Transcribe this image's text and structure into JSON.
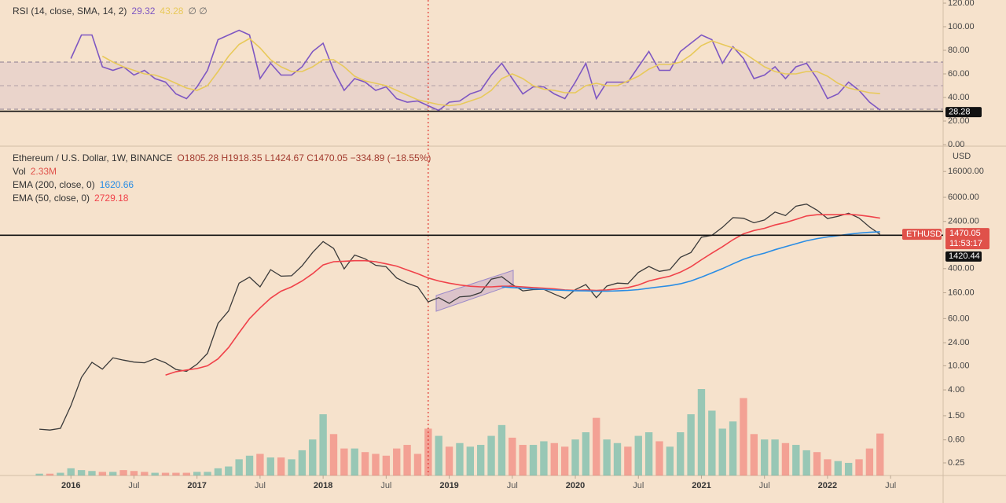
{
  "chart_data": [
    {
      "type": "line",
      "title": "RSI (14, close, SMA, 14, 2)",
      "legend_extra": "∅ ∅",
      "x": [
        "2015-10",
        "2015-11",
        "2015-12",
        "2016-01",
        "2016-02",
        "2016-03",
        "2016-04",
        "2016-05",
        "2016-06",
        "2016-07",
        "2016-08",
        "2016-09",
        "2016-10",
        "2016-11",
        "2016-12",
        "2017-01",
        "2017-02",
        "2017-03",
        "2017-04",
        "2017-05",
        "2017-06",
        "2017-07",
        "2017-08",
        "2017-09",
        "2017-10",
        "2017-11",
        "2017-12",
        "2018-01",
        "2018-02",
        "2018-03",
        "2018-04",
        "2018-05",
        "2018-06",
        "2018-07",
        "2018-08",
        "2018-09",
        "2018-10",
        "2018-11",
        "2018-12",
        "2019-01",
        "2019-02",
        "2019-03",
        "2019-04",
        "2019-05",
        "2019-06",
        "2019-07",
        "2019-08",
        "2019-09",
        "2019-10",
        "2019-11",
        "2019-12",
        "2020-01",
        "2020-02",
        "2020-03",
        "2020-04",
        "2020-05",
        "2020-06",
        "2020-07",
        "2020-08",
        "2020-09",
        "2020-10",
        "2020-11",
        "2020-12",
        "2021-01",
        "2021-02",
        "2021-03",
        "2021-04",
        "2021-05",
        "2021-06",
        "2021-07",
        "2021-08",
        "2021-09",
        "2021-10",
        "2021-11",
        "2021-12",
        "2022-01",
        "2022-02",
        "2022-03",
        "2022-04",
        "2022-05",
        "2022-06"
      ],
      "xlim": [
        "2015-07",
        "2022-12"
      ],
      "series": [
        {
          "name": "RSI",
          "color": "#7e57c2",
          "values": [
            null,
            null,
            null,
            73,
            93,
            93,
            66,
            63,
            66,
            59,
            63,
            56,
            53,
            43,
            39,
            49,
            63,
            89,
            93,
            97,
            93,
            56,
            69,
            59,
            59,
            66,
            79,
            86,
            63,
            46,
            56,
            53,
            46,
            49,
            39,
            36,
            37,
            33,
            29,
            36,
            37,
            43,
            46,
            59,
            69,
            56,
            43,
            49,
            49,
            43,
            39,
            53,
            69,
            39,
            53,
            53,
            53,
            66,
            79,
            63,
            63,
            79,
            86,
            93,
            89,
            69,
            83,
            73,
            56,
            59,
            66,
            56,
            66,
            69,
            56,
            39,
            43,
            53,
            46,
            36,
            29.32
          ]
        },
        {
          "name": "SMA",
          "color": "#e8c95a",
          "values": [
            null,
            null,
            null,
            null,
            null,
            null,
            75,
            70,
            66,
            63,
            60,
            59,
            56,
            52,
            48,
            46,
            50,
            62,
            75,
            85,
            90,
            82,
            72,
            66,
            62,
            62,
            66,
            72,
            72,
            66,
            58,
            54,
            52,
            50,
            46,
            42,
            38,
            36,
            34,
            33,
            34,
            37,
            40,
            46,
            56,
            60,
            56,
            50,
            47,
            46,
            44,
            44,
            50,
            52,
            50,
            50,
            54,
            58,
            64,
            68,
            68,
            70,
            76,
            84,
            88,
            85,
            82,
            78,
            72,
            66,
            62,
            60,
            60,
            62,
            62,
            58,
            52,
            48,
            46,
            44,
            43.28
          ]
        }
      ],
      "ylim": [
        0,
        120
      ],
      "yticks": [
        {
          "value": 0,
          "label": "0.00"
        },
        {
          "value": 20,
          "label": "20.00"
        },
        {
          "value": 40,
          "label": "40.00"
        },
        {
          "value": 60,
          "label": "60.00"
        },
        {
          "value": 80,
          "label": "80.00"
        },
        {
          "value": 100,
          "label": "100.00"
        },
        {
          "value": 120,
          "label": "120.00"
        }
      ],
      "band": [
        30,
        70
      ],
      "midline": 50,
      "band_color": "#7e57c2",
      "hline": {
        "value": 28.28,
        "label": "28.28"
      },
      "vline": "2018-11"
    },
    {
      "type": "line",
      "title": "Ethereum / U.S. Dollar, 1W, BINANCE",
      "ohlc": "O1805.28 H1918.35 L1424.67 C1470.05 −334.89 (−18.55%)",
      "axis_label": "USD",
      "countdown": "11:53:17",
      "log_scale": true,
      "x": [
        "2015-10",
        "2015-11",
        "2015-12",
        "2016-01",
        "2016-02",
        "2016-03",
        "2016-04",
        "2016-05",
        "2016-06",
        "2016-07",
        "2016-08",
        "2016-09",
        "2016-10",
        "2016-11",
        "2016-12",
        "2017-01",
        "2017-02",
        "2017-03",
        "2017-04",
        "2017-05",
        "2017-06",
        "2017-07",
        "2017-08",
        "2017-09",
        "2017-10",
        "2017-11",
        "2017-12",
        "2018-01",
        "2018-02",
        "2018-03",
        "2018-04",
        "2018-05",
        "2018-06",
        "2018-07",
        "2018-08",
        "2018-09",
        "2018-10",
        "2018-11",
        "2018-12",
        "2019-01",
        "2019-02",
        "2019-03",
        "2019-04",
        "2019-05",
        "2019-06",
        "2019-07",
        "2019-08",
        "2019-09",
        "2019-10",
        "2019-11",
        "2019-12",
        "2020-01",
        "2020-02",
        "2020-03",
        "2020-04",
        "2020-05",
        "2020-06",
        "2020-07",
        "2020-08",
        "2020-09",
        "2020-10",
        "2020-11",
        "2020-12",
        "2021-01",
        "2021-02",
        "2021-03",
        "2021-04",
        "2021-05",
        "2021-06",
        "2021-07",
        "2021-08",
        "2021-09",
        "2021-10",
        "2021-11",
        "2021-12",
        "2022-01",
        "2022-02",
        "2022-03",
        "2022-04",
        "2022-05",
        "2022-06"
      ],
      "xlim": [
        "2015-07",
        "2022-12"
      ],
      "xticks": [
        {
          "value": "2016-01",
          "label": "2016"
        },
        {
          "value": "2016-07",
          "label": "Jul"
        },
        {
          "value": "2017-01",
          "label": "2017"
        },
        {
          "value": "2017-07",
          "label": "Jul"
        },
        {
          "value": "2018-01",
          "label": "2018"
        },
        {
          "value": "2018-07",
          "label": "Jul"
        },
        {
          "value": "2019-01",
          "label": "2019"
        },
        {
          "value": "2019-07",
          "label": "Jul"
        },
        {
          "value": "2020-01",
          "label": "2020"
        },
        {
          "value": "2020-07",
          "label": "Jul"
        },
        {
          "value": "2021-01",
          "label": "2021"
        },
        {
          "value": "2021-07",
          "label": "Jul"
        },
        {
          "value": "2022-01",
          "label": "2022"
        },
        {
          "value": "2022-07",
          "label": "Jul"
        }
      ],
      "series": [
        {
          "name": "ETHUSD",
          "color": "#3a3a3a",
          "tag_color": "#e0514a",
          "values": [
            0.9,
            0.87,
            0.93,
            2.2,
            6.4,
            11.4,
            8.8,
            13.5,
            12.4,
            11.5,
            11.2,
            13.1,
            11.2,
            8.7,
            8.1,
            10.6,
            16,
            50,
            80,
            230,
            290,
            200,
            385,
            300,
            305,
            445,
            740,
            1120,
            860,
            395,
            670,
            580,
            455,
            430,
            280,
            230,
            200,
            113,
            133,
            107,
            137,
            141,
            161,
            268,
            294,
            218,
            172,
            180,
            182,
            152,
            129,
            180,
            218,
            133,
            206,
            231,
            226,
            345,
            435,
            360,
            386,
            615,
            737,
            1314,
            1416,
            1918,
            2773,
            2706,
            2275,
            2536,
            3433,
            3001,
            4288,
            4631,
            3683,
            2688,
            2919,
            3282,
            2730,
            1942,
            1470.05
          ]
        },
        {
          "name": "EMA (50, close, 0)",
          "color": "#f0424a",
          "values": [
            null,
            null,
            null,
            null,
            null,
            null,
            null,
            null,
            null,
            null,
            null,
            null,
            7,
            8,
            8.5,
            9,
            10,
            13,
            20,
            35,
            60,
            90,
            130,
            170,
            200,
            250,
            330,
            460,
            520,
            530,
            540,
            540,
            520,
            480,
            440,
            380,
            330,
            280,
            250,
            230,
            215,
            205,
            200,
            200,
            205,
            205,
            200,
            195,
            190,
            185,
            178,
            175,
            178,
            175,
            178,
            185,
            195,
            215,
            250,
            275,
            300,
            350,
            430,
            560,
            720,
            920,
            1200,
            1500,
            1700,
            1850,
            2100,
            2300,
            2600,
            2950,
            3100,
            3100,
            3100,
            3150,
            3050,
            2900,
            2729.18
          ]
        },
        {
          "name": "EMA (200, close, 0)",
          "color": "#2a8de4",
          "values": [
            null,
            null,
            null,
            null,
            null,
            null,
            null,
            null,
            null,
            null,
            null,
            null,
            null,
            null,
            null,
            null,
            null,
            null,
            null,
            null,
            null,
            null,
            null,
            null,
            null,
            null,
            null,
            null,
            null,
            null,
            null,
            null,
            null,
            null,
            null,
            null,
            null,
            null,
            null,
            null,
            null,
            null,
            null,
            null,
            200,
            195,
            190,
            185,
            182,
            178,
            175,
            173,
            172,
            170,
            170,
            172,
            175,
            180,
            190,
            200,
            210,
            225,
            250,
            290,
            340,
            400,
            480,
            570,
            650,
            720,
            820,
            920,
            1030,
            1150,
            1250,
            1330,
            1400,
            1480,
            1540,
            1590,
            1620.66
          ]
        }
      ],
      "legend_order": [
        2,
        1
      ],
      "ylim": [
        0.155,
        39400
      ],
      "yticks": [
        {
          "value": 0.25,
          "label": "0.25"
        },
        {
          "value": 0.6,
          "label": "0.60"
        },
        {
          "value": 1.5,
          "label": "1.50"
        },
        {
          "value": 4,
          "label": "4.00"
        },
        {
          "value": 10,
          "label": "10.00"
        },
        {
          "value": 24,
          "label": "24.00"
        },
        {
          "value": 60,
          "label": "60.00"
        },
        {
          "value": 160,
          "label": "160.00"
        },
        {
          "value": 400,
          "label": "400.00"
        },
        {
          "value": 2400,
          "label": "2400.00"
        },
        {
          "value": 6000,
          "label": "6000.00"
        },
        {
          "value": 16000,
          "label": "16000.00"
        }
      ],
      "hline": {
        "value": 1420.44,
        "label": "1420.44"
      },
      "vline": "2018-11"
    },
    {
      "type": "bar",
      "title": "Vol",
      "legend_value": "2.33M",
      "up_color": "#26a69a",
      "down_color": "#ef5350",
      "x": [
        "2015-10",
        "2015-11",
        "2015-12",
        "2016-01",
        "2016-02",
        "2016-03",
        "2016-04",
        "2016-05",
        "2016-06",
        "2016-07",
        "2016-08",
        "2016-09",
        "2016-10",
        "2016-11",
        "2016-12",
        "2017-01",
        "2017-02",
        "2017-03",
        "2017-04",
        "2017-05",
        "2017-06",
        "2017-07",
        "2017-08",
        "2017-09",
        "2017-10",
        "2017-11",
        "2017-12",
        "2018-01",
        "2018-02",
        "2018-03",
        "2018-04",
        "2018-05",
        "2018-06",
        "2018-07",
        "2018-08",
        "2018-09",
        "2018-10",
        "2018-11",
        "2018-12",
        "2019-01",
        "2019-02",
        "2019-03",
        "2019-04",
        "2019-05",
        "2019-06",
        "2019-07",
        "2019-08",
        "2019-09",
        "2019-10",
        "2019-11",
        "2019-12",
        "2020-01",
        "2020-02",
        "2020-03",
        "2020-04",
        "2020-05",
        "2020-06",
        "2020-07",
        "2020-08",
        "2020-09",
        "2020-10",
        "2020-11",
        "2020-12",
        "2021-01",
        "2021-02",
        "2021-03",
        "2021-04",
        "2021-05",
        "2021-06",
        "2021-07",
        "2021-08",
        "2021-09",
        "2021-10",
        "2021-11",
        "2021-12",
        "2022-01",
        "2022-02",
        "2022-03",
        "2022-04",
        "2022-05",
        "2022-06"
      ],
      "xlim": [
        "2015-07",
        "2022-12"
      ],
      "values": [
        0.1,
        0.1,
        0.15,
        0.4,
        0.3,
        0.25,
        0.2,
        0.2,
        0.3,
        0.25,
        0.2,
        0.15,
        0.15,
        0.15,
        0.15,
        0.2,
        0.2,
        0.4,
        0.5,
        0.9,
        1.1,
        1.2,
        1.0,
        1.0,
        0.9,
        1.4,
        2.0,
        3.4,
        2.3,
        1.5,
        1.5,
        1.3,
        1.2,
        1.1,
        1.5,
        1.7,
        1.2,
        2.6,
        2.2,
        1.6,
        1.8,
        1.6,
        1.7,
        2.2,
        2.8,
        2.1,
        1.7,
        1.7,
        1.9,
        1.8,
        1.6,
        2.0,
        2.4,
        3.2,
        2.0,
        1.8,
        1.6,
        2.2,
        2.4,
        1.9,
        1.6,
        2.4,
        3.4,
        4.8,
        3.6,
        2.6,
        3.0,
        4.3,
        2.3,
        2.0,
        2.0,
        1.8,
        1.7,
        1.4,
        1.3,
        0.9,
        0.8,
        0.7,
        0.9,
        1.5,
        2.33
      ]
    }
  ]
}
